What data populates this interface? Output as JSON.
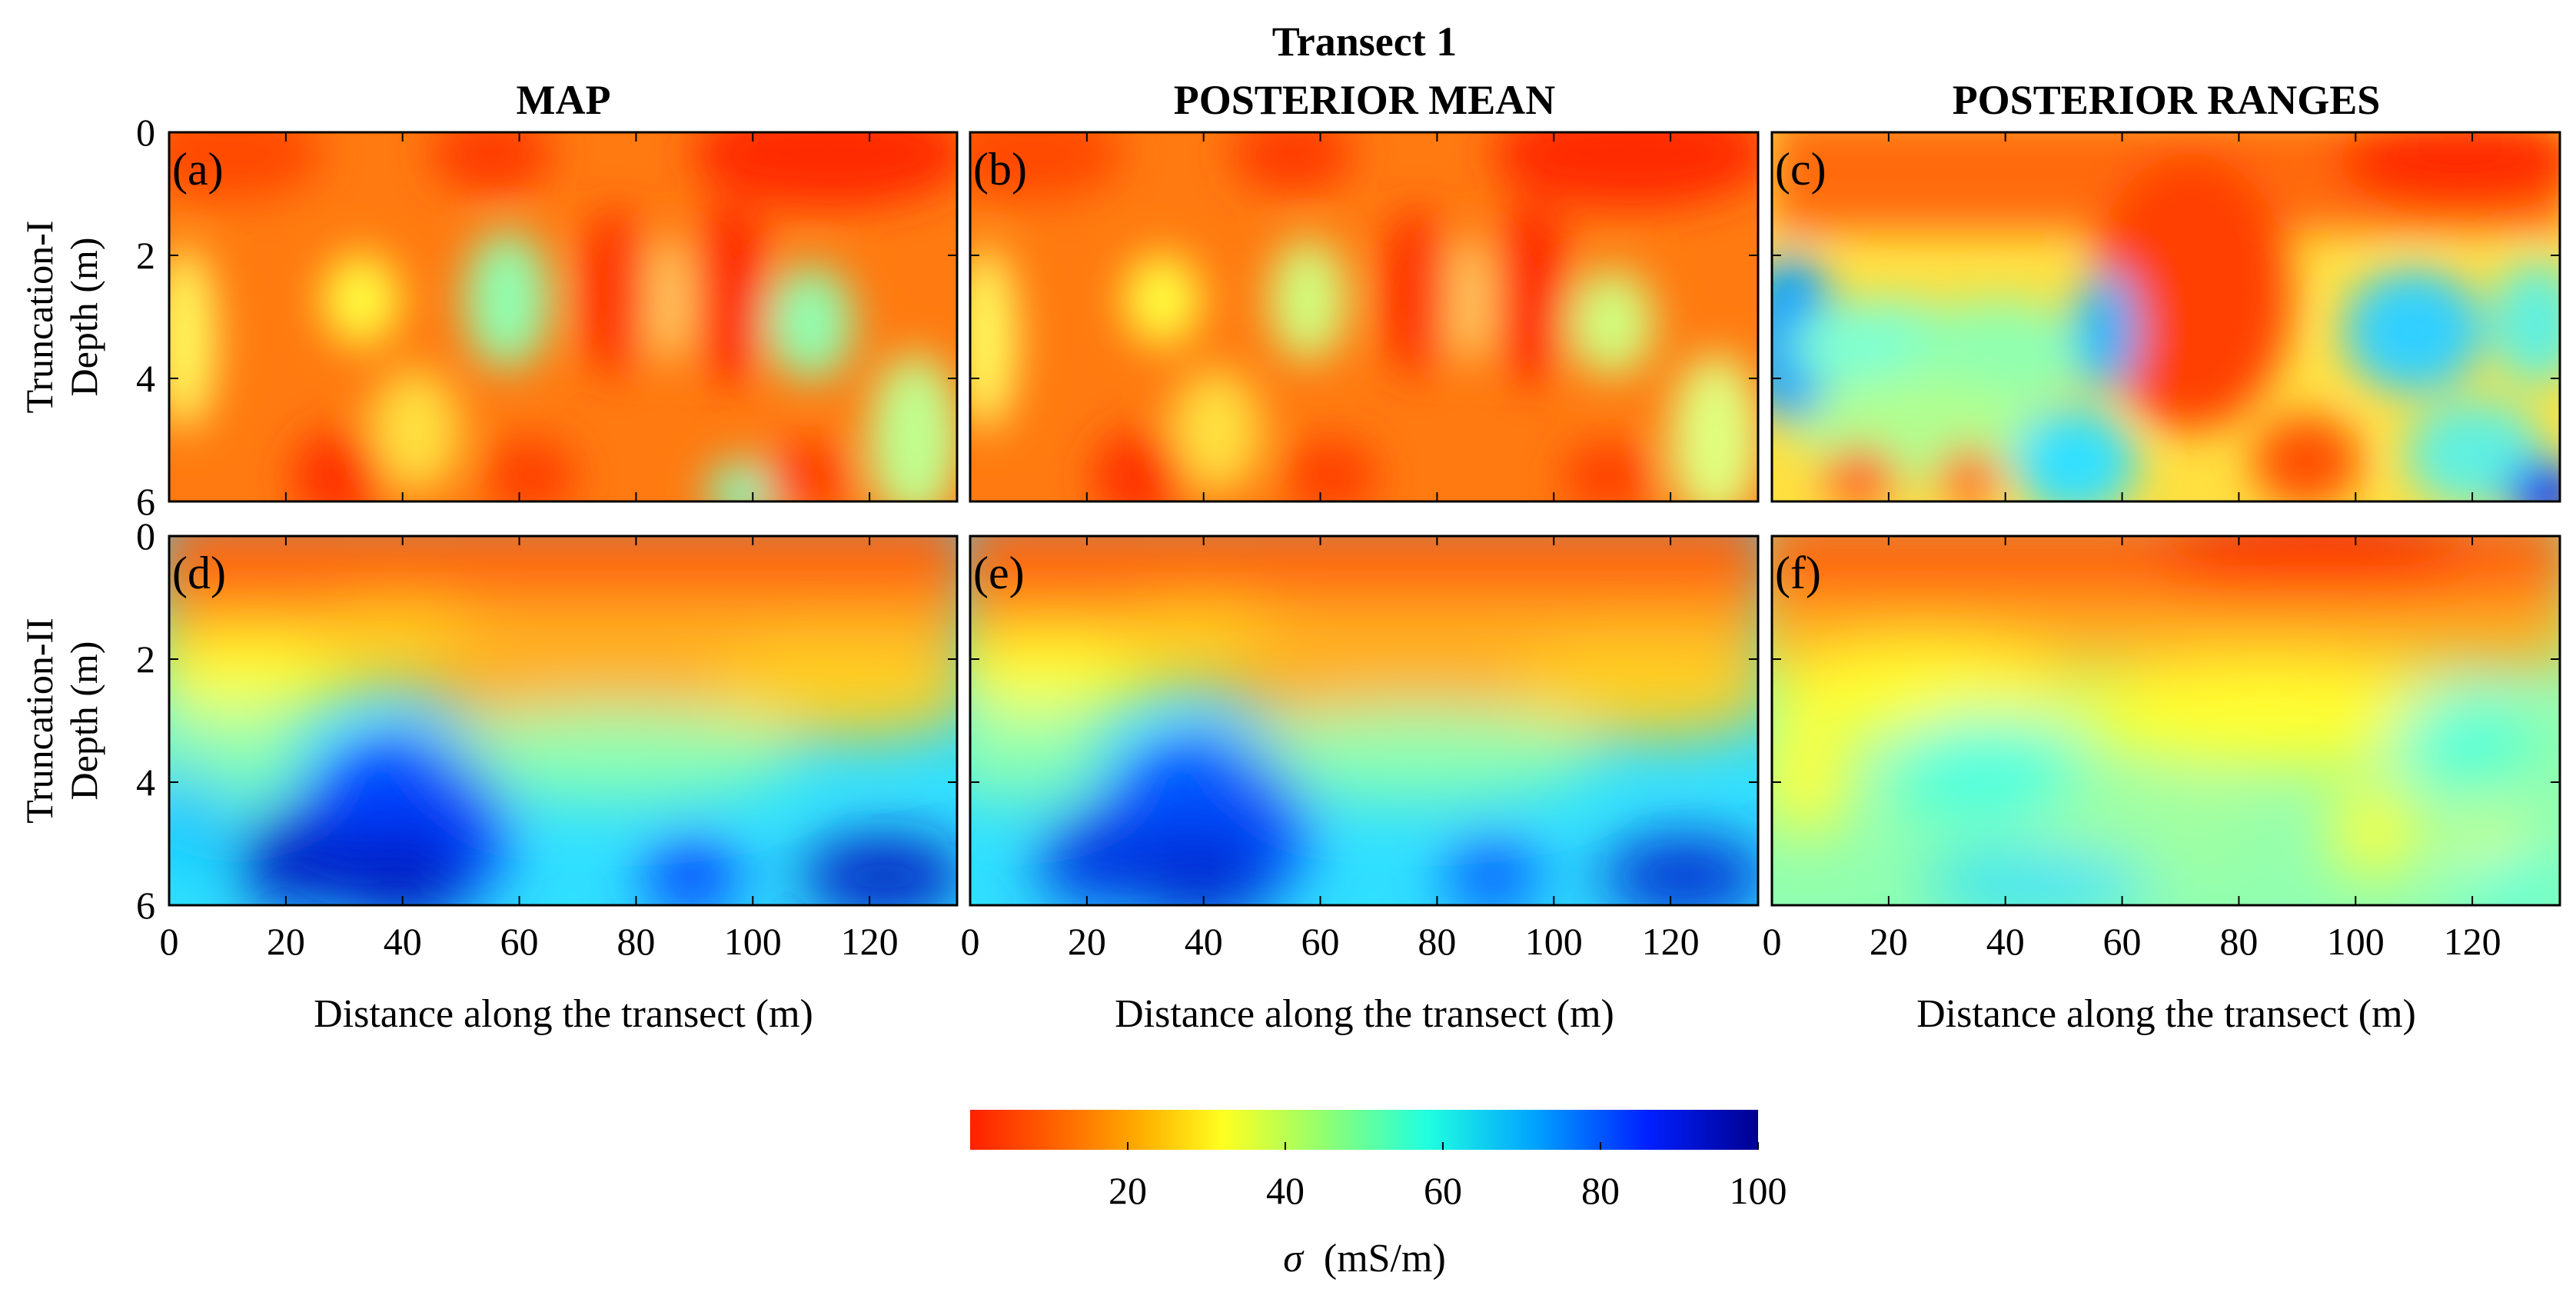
{
  "chart_data": {
    "type": "heatmap",
    "title": "Transect 1",
    "column_titles": [
      "MAP",
      "POSTERIOR MEAN",
      "POSTERIOR RANGES"
    ],
    "row_titles": [
      {
        "line1": "Truncation-I",
        "line2": "Depth (m)"
      },
      {
        "line1": "Truncation-II",
        "line2": "Depth (m)"
      }
    ],
    "panels": [
      {
        "label": "(a)",
        "row": 0,
        "col": 0
      },
      {
        "label": "(b)",
        "row": 0,
        "col": 1
      },
      {
        "label": "(c)",
        "row": 0,
        "col": 2
      },
      {
        "label": "(d)",
        "row": 1,
        "col": 0
      },
      {
        "label": "(e)",
        "row": 1,
        "col": 1
      },
      {
        "label": "(f)",
        "row": 1,
        "col": 2
      }
    ],
    "x_label": "Distance along the transect (m)",
    "x_range": [
      0,
      135
    ],
    "x_ticks": [
      "0",
      "20",
      "40",
      "60",
      "80",
      "100",
      "120"
    ],
    "y_range": [
      0,
      6
    ],
    "y_ticks": [
      "0",
      "2",
      "4",
      "6"
    ],
    "colorbar": {
      "label_symbol": "σ",
      "label_units": "(mS/m)",
      "range": [
        0,
        100
      ],
      "ticks": [
        "20",
        "40",
        "60",
        "80",
        "100"
      ],
      "colors": [
        "#ff2000",
        "#ff6a00",
        "#ffb000",
        "#ffff20",
        "#90ff70",
        "#20ffe0",
        "#00a0ff",
        "#0020ff",
        "#000090"
      ]
    }
  }
}
